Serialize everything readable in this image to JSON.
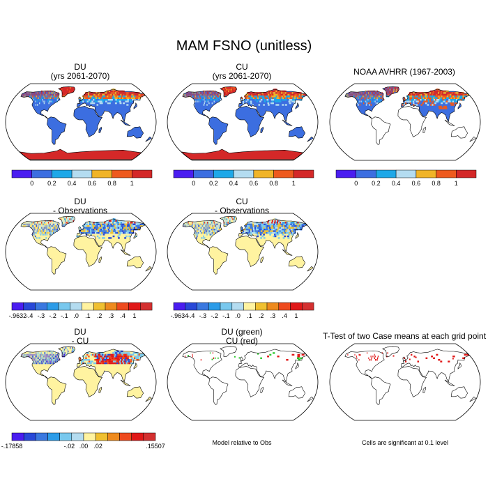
{
  "title": "MAM FSNO (unitless)",
  "palette_main": [
    "#4a1df0",
    "#3c6ee0",
    "#1ea8e8",
    "#b4dcf0",
    "#f0b428",
    "#ee5a1e",
    "#d42828"
  ],
  "palette_diff": [
    "#4a1df0",
    "#2848d8",
    "#3a78e0",
    "#2c9ce8",
    "#78c8ee",
    "#b4dcf0",
    "#fff3a0",
    "#f0c030",
    "#ee8a1e",
    "#ee4a1e",
    "#e01818",
    "#d43030"
  ],
  "panels": [
    {
      "id": "du",
      "title_line1": "DU",
      "title_line2": "(yrs 2061-2070)",
      "kind": "abs",
      "antarctic": true
    },
    {
      "id": "cu",
      "title_line1": "CU",
      "title_line2": "(yrs 2061-2070)",
      "kind": "abs",
      "antarctic": true
    },
    {
      "id": "obs",
      "title_line1": "NOAA AVHRR (1967-2003)",
      "title_line2": "",
      "kind": "obs",
      "antarctic": false
    },
    {
      "id": "du-obs",
      "title_line1": "DU",
      "title_line2": "- Observations",
      "kind": "diff",
      "antarctic": false
    },
    {
      "id": "cu-obs",
      "title_line1": "CU",
      "title_line2": "- Observations",
      "kind": "diff",
      "antarctic": false
    },
    {
      "id": "du-cu",
      "title_line1": "DU",
      "title_line2": "- CU",
      "kind": "dcu",
      "antarctic": false
    },
    {
      "id": "model-rel",
      "title_line1": "DU (green)",
      "title_line2": "CU (red)",
      "kind": "rel",
      "antarctic": false
    },
    {
      "id": "ttest",
      "title_line1": "T-Test of two Case means at each grid point",
      "title_line2": "",
      "kind": "ttest",
      "antarctic": false
    }
  ],
  "colorbars": {
    "abs": {
      "labels": [
        "0",
        "0.2",
        "0.4",
        "0.6",
        "0.8",
        "1"
      ]
    },
    "du_obs": {
      "labels": [
        "-.9632",
        "-.4",
        "-.3",
        "-.2",
        "-.1",
        ".0",
        ".1",
        ".2",
        ".3",
        ".4",
        "1"
      ]
    },
    "cu_obs": {
      "labels": [
        "-.9634",
        "-.4",
        "-.3",
        "-.2",
        "-.1",
        ".0",
        ".1",
        ".2",
        ".3",
        ".4",
        "1"
      ]
    },
    "du_cu": {
      "labels": [
        "-.17858",
        "-.02",
        ".00",
        ".02",
        ".15507"
      ]
    }
  },
  "footnotes": {
    "model_rel": "Model relative to Obs",
    "ttest": "Cells are significant at 0.1 level"
  }
}
